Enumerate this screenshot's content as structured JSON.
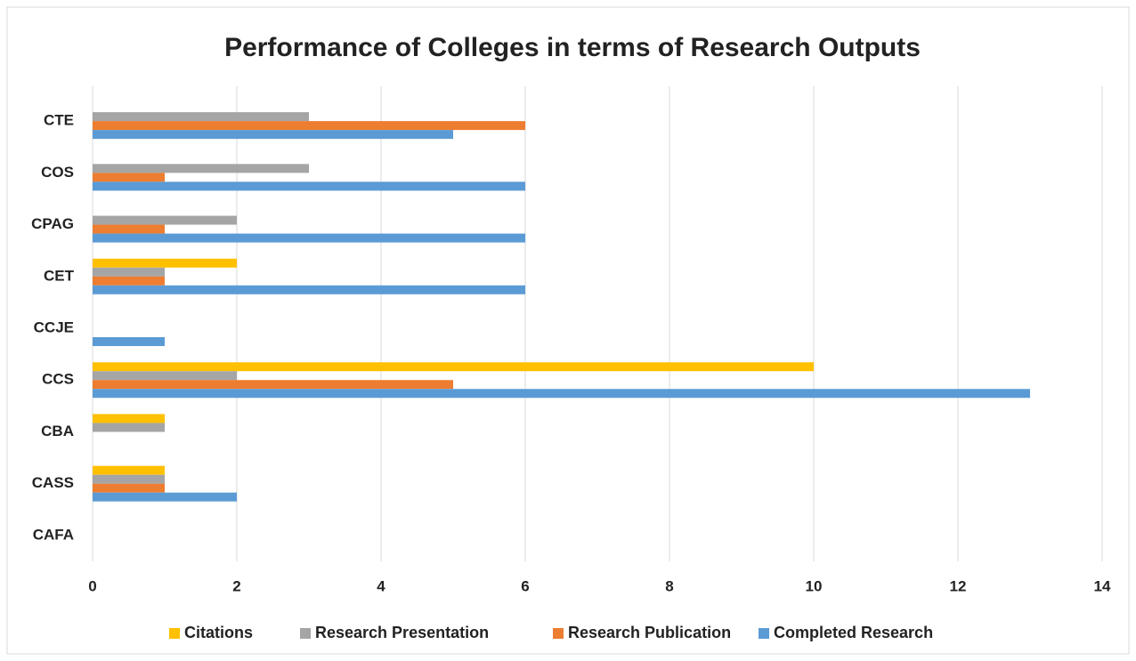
{
  "chart_data": {
    "type": "bar",
    "orientation": "horizontal",
    "title": "Performance of Colleges in terms of Research Outputs",
    "categories": [
      "CTE",
      "COS",
      "CPAG",
      "CET",
      "CCJE",
      "CCS",
      "CBA",
      "CASS",
      "CAFA"
    ],
    "series": [
      {
        "name": "Citations",
        "color": "#ffc000",
        "values": [
          0,
          0,
          0,
          2,
          0,
          10,
          1,
          1,
          0
        ]
      },
      {
        "name": "Research Presentation",
        "color": "#a5a5a5",
        "values": [
          3,
          3,
          2,
          1,
          0,
          2,
          1,
          1,
          0
        ]
      },
      {
        "name": "Research Publication",
        "color": "#ed7d31",
        "values": [
          6,
          1,
          1,
          1,
          0,
          5,
          0,
          1,
          0
        ]
      },
      {
        "name": "Completed Research",
        "color": "#5b9bd5",
        "values": [
          5,
          6,
          6,
          6,
          1,
          13,
          0,
          2,
          0
        ]
      }
    ],
    "xlim": [
      0,
      14
    ],
    "xticks": [
      0,
      2,
      4,
      6,
      8,
      10,
      12,
      14
    ],
    "grid": true,
    "legend": "bottom"
  }
}
